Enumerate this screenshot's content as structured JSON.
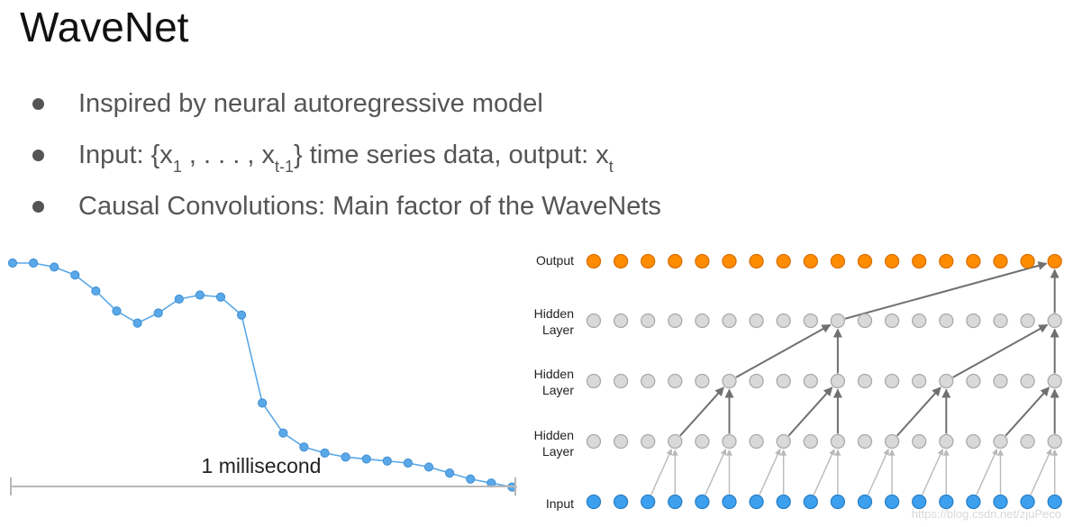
{
  "slide": {
    "title": "WaveNet",
    "bullets": [
      {
        "text": "Inspired by neural autoregressive model"
      },
      {
        "parts": [
          "Input: {x",
          "1",
          " , . . . , x",
          "t-1",
          "}  time series data, output: x",
          "t"
        ]
      },
      {
        "text": "Causal Convolutions: Main factor of the WaveNets"
      }
    ]
  },
  "waveform": {
    "scale_label": "1 millisecond",
    "values": [
      0.0,
      0.0,
      0.02,
      0.06,
      0.14,
      0.24,
      0.3,
      0.25,
      0.18,
      0.16,
      0.17,
      0.26,
      0.7,
      0.85,
      0.92,
      0.95,
      0.97,
      0.98,
      0.99,
      1.0,
      1.02,
      1.05,
      1.08,
      1.1,
      1.12
    ],
    "color": "#5aa8e8"
  },
  "network": {
    "layer_labels": {
      "output": "Output",
      "hidden_top": [
        "Hidden",
        "Layer"
      ],
      "hidden_mid": [
        "Hidden",
        "Layer"
      ],
      "hidden_bottom": [
        "Hidden",
        "Layer"
      ],
      "input": "Input"
    },
    "nodes_per_layer": 18,
    "dilations": [
      1,
      2,
      4,
      8
    ],
    "colors": {
      "output": "#ff8c00",
      "hidden": "#d9d9d9",
      "input": "#3da0ef",
      "active_edge": "#707070",
      "faint_edge": "#b9b9b9"
    }
  },
  "watermark": "https://blog.csdn.net/zjuPeco"
}
